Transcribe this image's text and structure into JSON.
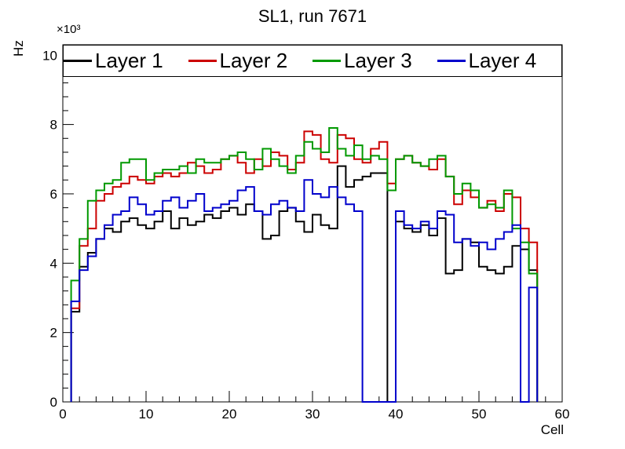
{
  "title": "SL1, run 7671",
  "axes": {
    "x_label": "Cell",
    "y_label": "Hz",
    "y_exponent": "×10³",
    "x_ticks": [
      0,
      10,
      20,
      30,
      40,
      50,
      60
    ],
    "y_ticks": [
      0,
      2,
      4,
      6,
      8,
      10
    ]
  },
  "legend": {
    "entries": [
      {
        "label": "Layer 1",
        "color": "#000000"
      },
      {
        "label": "Layer 2",
        "color": "#cc0000"
      },
      {
        "label": "Layer 3",
        "color": "#009900"
      },
      {
        "label": "Layer 4",
        "color": "#0000cc"
      }
    ]
  },
  "chart_data": {
    "type": "line",
    "subtype": "step-histogram",
    "title": "SL1, run 7671",
    "xlabel": "Cell",
    "ylabel": "Hz",
    "xlim": [
      0,
      60
    ],
    "ylim": [
      0,
      10300
    ],
    "values_unit": "kHz (Hz ×10³)",
    "x_note": "bins of width 1, first bin starts at cell 1, 56 bins per series",
    "x_start": 1,
    "bin_width": 1,
    "n_bins": 56,
    "grid": false,
    "legend_position": "top full-width inside frame",
    "series": [
      {
        "name": "Layer 1",
        "color": "#000000",
        "values": [
          2.6,
          3.9,
          4.3,
          4.7,
          5.0,
          4.9,
          5.2,
          5.3,
          5.1,
          5.0,
          5.2,
          5.5,
          5.0,
          5.3,
          5.1,
          5.2,
          5.4,
          5.3,
          5.5,
          5.6,
          5.4,
          5.7,
          5.5,
          4.7,
          4.8,
          5.5,
          5.6,
          5.2,
          4.9,
          5.4,
          5.1,
          5.0,
          6.8,
          6.2,
          6.4,
          6.5,
          6.6,
          6.6,
          0.0,
          5.2,
          5.0,
          4.9,
          5.1,
          4.8,
          5.3,
          3.7,
          3.8,
          4.7,
          4.6,
          3.9,
          3.8,
          3.7,
          3.9,
          4.5,
          4.4,
          3.8
        ]
      },
      {
        "name": "Layer 2",
        "color": "#cc0000",
        "values": [
          2.7,
          4.5,
          5.0,
          5.8,
          6.0,
          6.2,
          6.3,
          6.5,
          6.4,
          6.3,
          6.5,
          6.6,
          6.5,
          6.6,
          6.9,
          6.8,
          6.6,
          6.7,
          7.0,
          7.1,
          6.9,
          6.6,
          7.0,
          6.8,
          7.2,
          7.1,
          6.7,
          6.9,
          7.8,
          7.7,
          7.0,
          6.9,
          7.7,
          7.6,
          7.0,
          6.9,
          7.3,
          7.5,
          6.3,
          7.0,
          7.1,
          6.9,
          6.8,
          6.7,
          7.0,
          6.5,
          5.7,
          6.1,
          5.9,
          5.6,
          5.8,
          5.5,
          6.0,
          5.9,
          5.0,
          4.6
        ]
      },
      {
        "name": "Layer 3",
        "color": "#009900",
        "values": [
          3.5,
          4.7,
          5.8,
          6.1,
          6.3,
          6.4,
          6.9,
          7.0,
          7.0,
          6.4,
          6.6,
          6.7,
          6.7,
          6.8,
          6.6,
          7.0,
          6.9,
          6.9,
          7.0,
          7.1,
          7.2,
          7.0,
          6.7,
          7.3,
          7.0,
          6.8,
          6.6,
          7.1,
          7.5,
          7.3,
          7.2,
          7.9,
          7.3,
          7.1,
          7.4,
          7.0,
          7.1,
          7.0,
          6.1,
          7.0,
          7.1,
          6.9,
          6.8,
          7.0,
          7.1,
          6.5,
          6.0,
          6.3,
          6.1,
          5.6,
          5.7,
          5.6,
          6.1,
          5.0,
          4.6,
          3.7
        ]
      },
      {
        "name": "Layer 4",
        "color": "#0000cc",
        "values": [
          2.9,
          3.8,
          4.2,
          4.7,
          5.1,
          5.4,
          5.5,
          5.9,
          5.7,
          5.4,
          5.5,
          5.8,
          5.9,
          5.6,
          5.8,
          6.0,
          5.5,
          5.6,
          5.7,
          5.8,
          6.1,
          6.2,
          5.5,
          5.4,
          5.7,
          5.8,
          5.6,
          5.5,
          6.4,
          6.0,
          5.9,
          6.2,
          5.9,
          5.7,
          5.5,
          0.0,
          0.0,
          0.0,
          0.0,
          5.5,
          5.1,
          5.0,
          5.2,
          5.0,
          5.5,
          5.4,
          4.6,
          4.7,
          4.5,
          4.6,
          4.4,
          4.7,
          4.9,
          5.1,
          0.0,
          3.3
        ]
      }
    ]
  }
}
